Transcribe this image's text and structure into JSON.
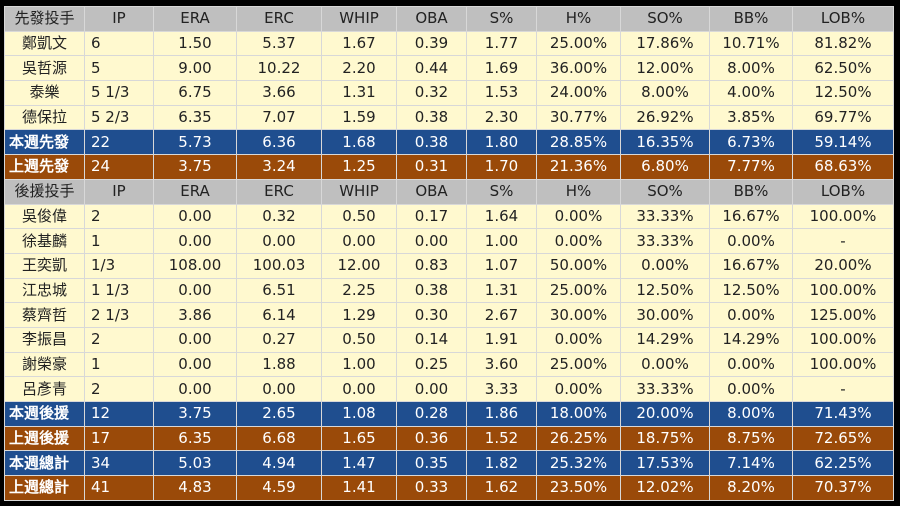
{
  "columns": [
    "IP",
    "ERA",
    "ERC",
    "WHIP",
    "OBA",
    "S%",
    "H%",
    "SO%",
    "BB%",
    "LOB%"
  ],
  "colors": {
    "header": "#bfbfbf",
    "player": "#fff9cf",
    "this_week": "#1f4e8f",
    "last_week": "#9a4a09"
  },
  "rows": [
    {
      "type": "hdr",
      "cells": [
        "先發投手",
        "IP",
        "ERA",
        "ERC",
        "WHIP",
        "OBA",
        "S%",
        "H%",
        "SO%",
        "BB%",
        "LOB%"
      ]
    },
    {
      "type": "pl",
      "cells": [
        "鄭凱文",
        "6",
        "1.50",
        "5.37",
        "1.67",
        "0.39",
        "1.77",
        "25.00%",
        "17.86%",
        "10.71%",
        "81.82%"
      ]
    },
    {
      "type": "pl",
      "cells": [
        "吳哲源",
        "5",
        "9.00",
        "10.22",
        "2.20",
        "0.44",
        "1.69",
        "36.00%",
        "12.00%",
        "8.00%",
        "62.50%"
      ]
    },
    {
      "type": "pl",
      "cells": [
        "泰樂",
        "5 1/3",
        "6.75",
        "3.66",
        "1.31",
        "0.32",
        "1.53",
        "24.00%",
        "8.00%",
        "4.00%",
        "12.50%"
      ]
    },
    {
      "type": "pl",
      "cells": [
        "德保拉",
        "5 2/3",
        "6.35",
        "7.07",
        "1.59",
        "0.38",
        "2.30",
        "30.77%",
        "26.92%",
        "3.85%",
        "69.77%"
      ]
    },
    {
      "type": "cur",
      "cells": [
        "本週先發",
        "22",
        "5.73",
        "6.36",
        "1.68",
        "0.38",
        "1.80",
        "28.85%",
        "16.35%",
        "6.73%",
        "59.14%"
      ]
    },
    {
      "type": "prev",
      "cells": [
        "上週先發",
        "24",
        "3.75",
        "3.24",
        "1.25",
        "0.31",
        "1.70",
        "21.36%",
        "6.80%",
        "7.77%",
        "68.63%"
      ]
    },
    {
      "type": "hdr",
      "cells": [
        "後援投手",
        "IP",
        "ERA",
        "ERC",
        "WHIP",
        "OBA",
        "S%",
        "H%",
        "SO%",
        "BB%",
        "LOB%"
      ]
    },
    {
      "type": "pl",
      "cells": [
        "吳俊偉",
        "2",
        "0.00",
        "0.32",
        "0.50",
        "0.17",
        "1.64",
        "0.00%",
        "33.33%",
        "16.67%",
        "100.00%"
      ]
    },
    {
      "type": "pl",
      "cells": [
        "徐基麟",
        "1",
        "0.00",
        "0.00",
        "0.00",
        "0.00",
        "1.00",
        "0.00%",
        "33.33%",
        "0.00%",
        "-"
      ]
    },
    {
      "type": "pl",
      "cells": [
        "王奕凱",
        "1/3",
        "108.00",
        "100.03",
        "12.00",
        "0.83",
        "1.07",
        "50.00%",
        "0.00%",
        "16.67%",
        "20.00%"
      ]
    },
    {
      "type": "pl",
      "cells": [
        "江忠城",
        "1 1/3",
        "0.00",
        "6.51",
        "2.25",
        "0.38",
        "1.31",
        "25.00%",
        "12.50%",
        "12.50%",
        "100.00%"
      ]
    },
    {
      "type": "pl",
      "cells": [
        "蔡齊哲",
        "2 1/3",
        "3.86",
        "6.14",
        "1.29",
        "0.30",
        "2.67",
        "30.00%",
        "30.00%",
        "0.00%",
        "125.00%"
      ]
    },
    {
      "type": "pl",
      "cells": [
        "李振昌",
        "2",
        "0.00",
        "0.27",
        "0.50",
        "0.14",
        "1.91",
        "0.00%",
        "14.29%",
        "14.29%",
        "100.00%"
      ]
    },
    {
      "type": "pl",
      "cells": [
        "謝榮豪",
        "1",
        "0.00",
        "1.88",
        "1.00",
        "0.25",
        "3.60",
        "25.00%",
        "0.00%",
        "0.00%",
        "100.00%"
      ]
    },
    {
      "type": "pl",
      "cells": [
        "呂彥青",
        "2",
        "0.00",
        "0.00",
        "0.00",
        "0.00",
        "3.33",
        "0.00%",
        "33.33%",
        "0.00%",
        "-"
      ]
    },
    {
      "type": "cur",
      "cells": [
        "本週後援",
        "12",
        "3.75",
        "2.65",
        "1.08",
        "0.28",
        "1.86",
        "18.00%",
        "20.00%",
        "8.00%",
        "71.43%"
      ]
    },
    {
      "type": "prev",
      "cells": [
        "上週後援",
        "17",
        "6.35",
        "6.68",
        "1.65",
        "0.36",
        "1.52",
        "26.25%",
        "18.75%",
        "8.75%",
        "72.65%"
      ]
    },
    {
      "type": "cur",
      "cells": [
        "本週總計",
        "34",
        "5.03",
        "4.94",
        "1.47",
        "0.35",
        "1.82",
        "25.32%",
        "17.53%",
        "7.14%",
        "62.25%"
      ]
    },
    {
      "type": "prev",
      "cells": [
        "上週總計",
        "41",
        "4.83",
        "4.59",
        "1.41",
        "0.33",
        "1.62",
        "23.50%",
        "12.02%",
        "8.20%",
        "70.37%"
      ]
    }
  ]
}
